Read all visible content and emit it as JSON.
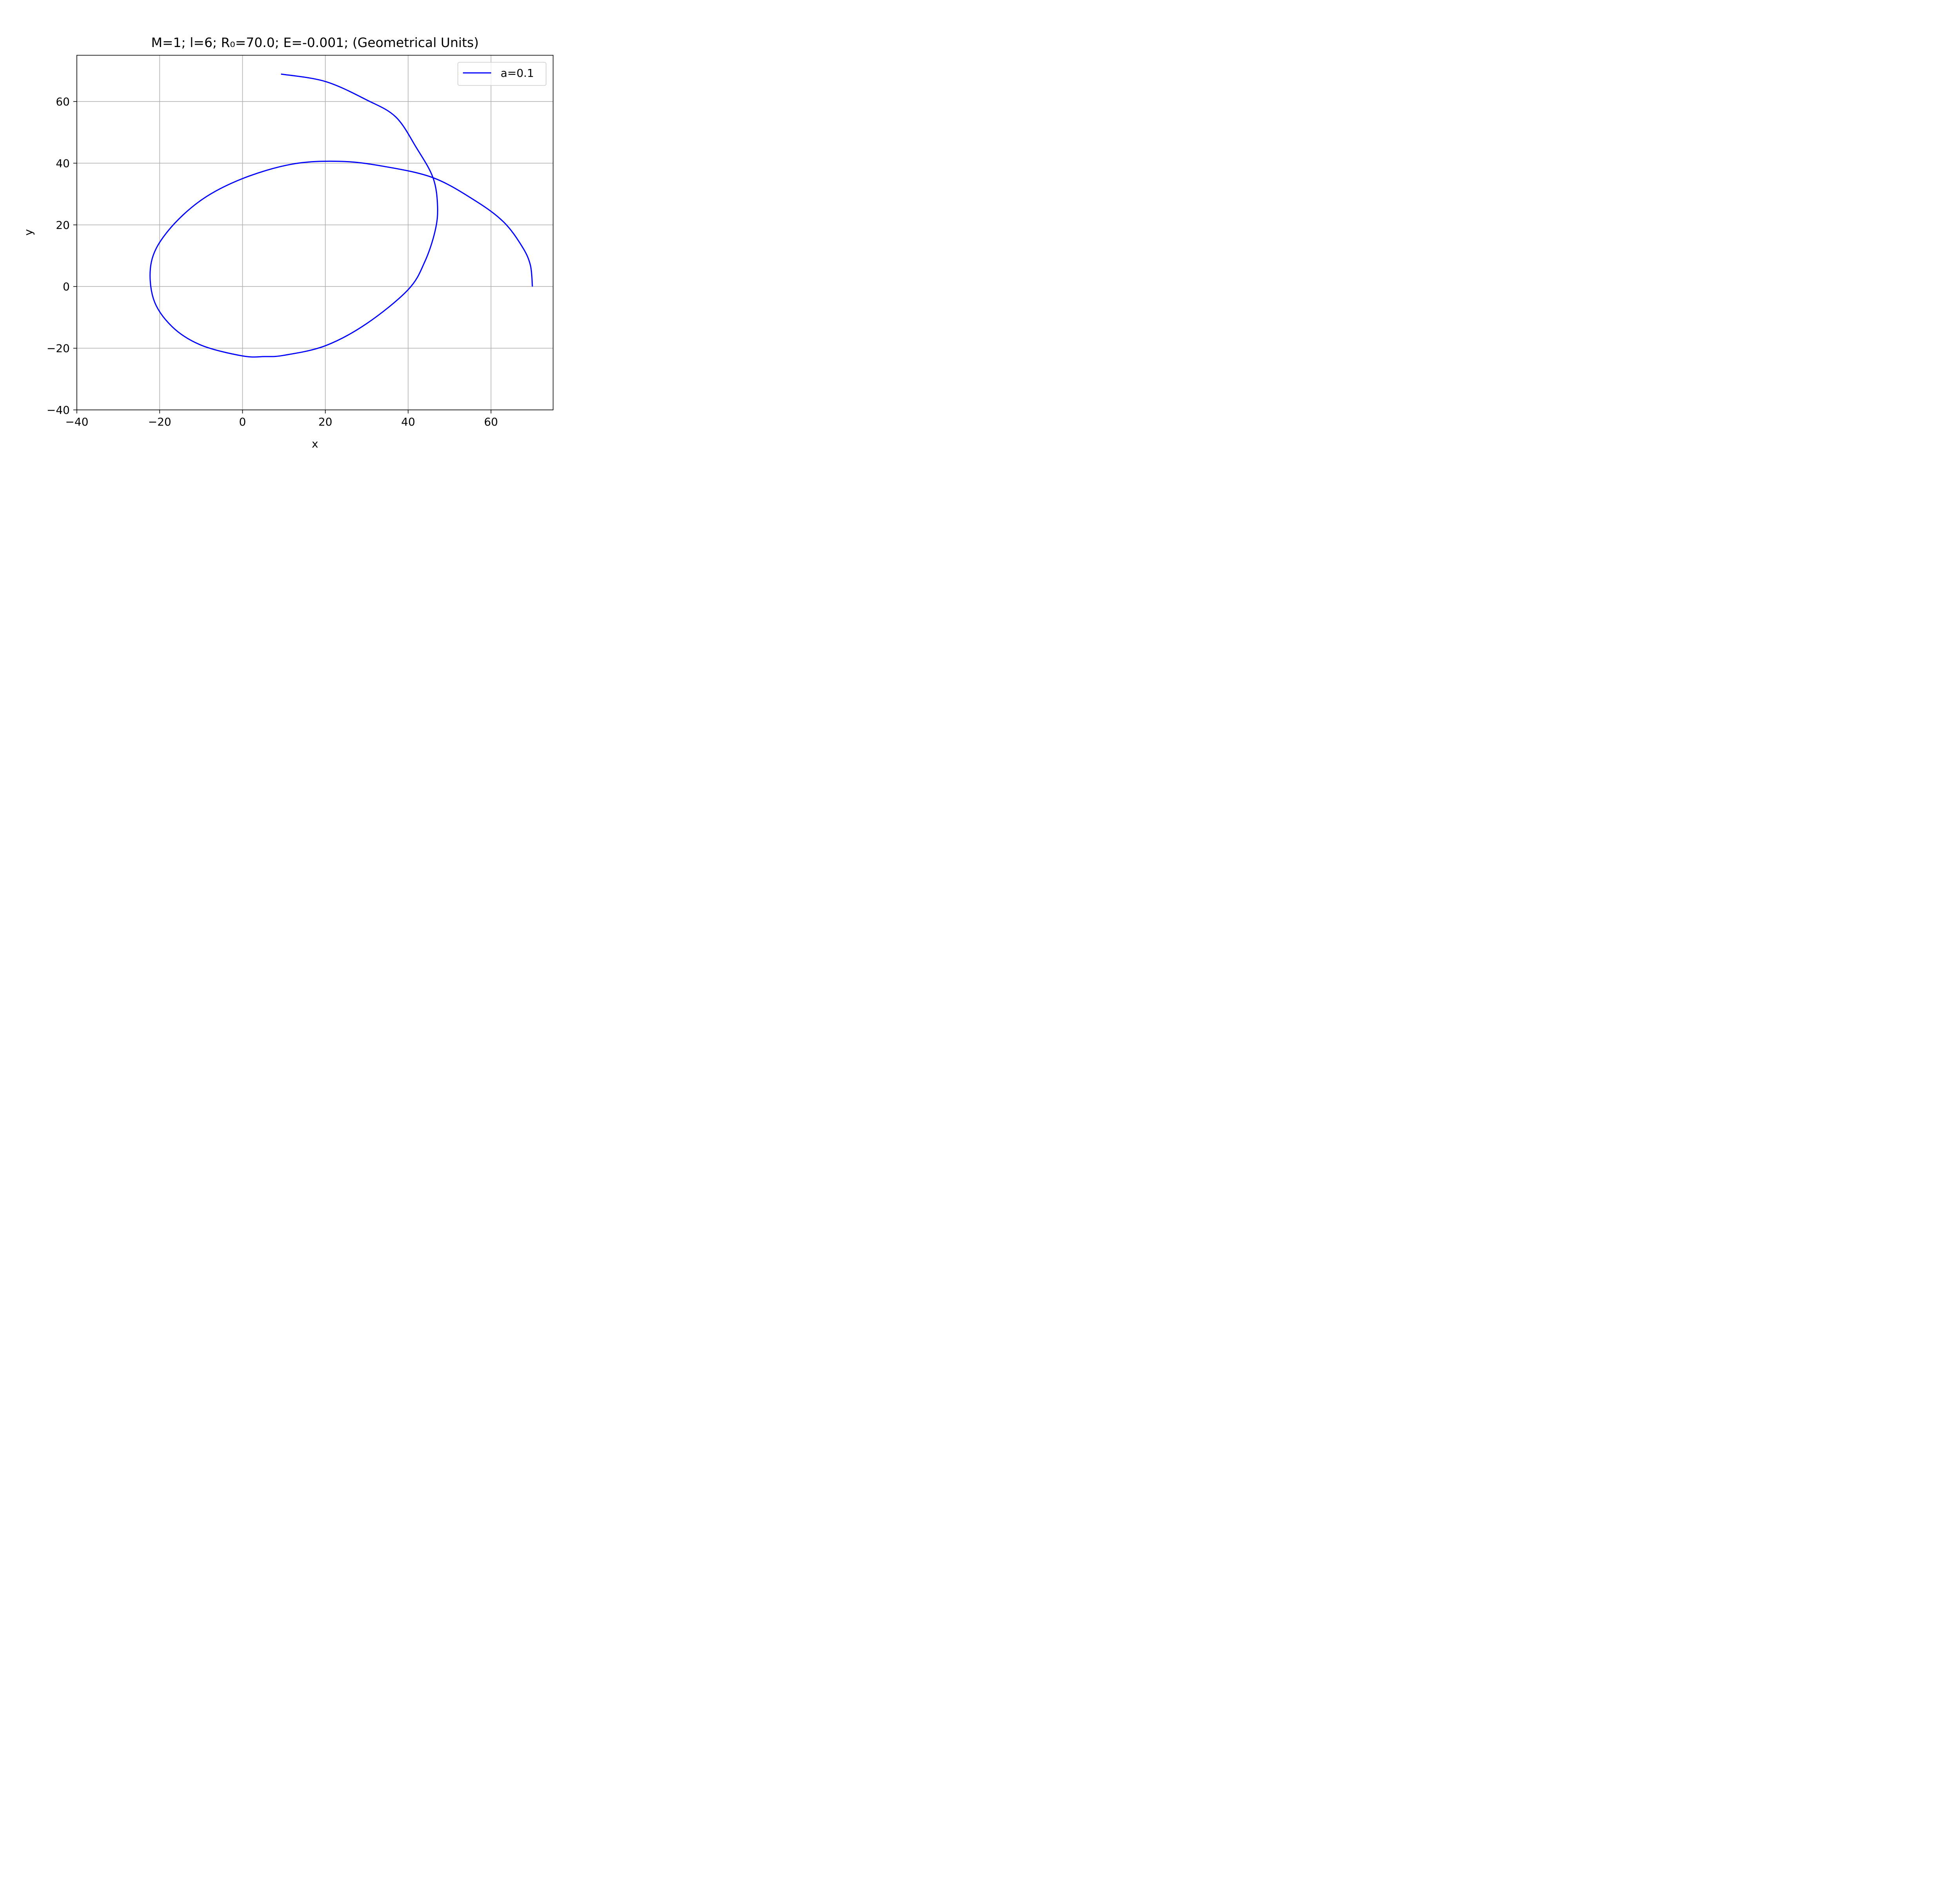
{
  "chart_data": {
    "type": "line",
    "title": "M=1; l=6; R₀=70.0; E=-0.001; (Geometrical Units)",
    "xlabel": "x",
    "ylabel": "y",
    "xlim": [
      -40,
      75
    ],
    "ylim": [
      -40,
      75
    ],
    "x_ticks": [
      -40,
      -20,
      0,
      20,
      40,
      60
    ],
    "y_ticks": [
      -40,
      -20,
      0,
      20,
      40,
      60
    ],
    "x_tick_labels": [
      "−40",
      "−20",
      "0",
      "20",
      "40",
      "60"
    ],
    "y_tick_labels": [
      "−40",
      "−20",
      "0",
      "20",
      "40",
      "60"
    ],
    "grid": true,
    "legend_position": "top-right",
    "colors": {
      "series": "#0000ff",
      "grid": "#b0b0b0",
      "axes": "#000000"
    },
    "series": [
      {
        "name": "a=0.1",
        "color": "#0000ff",
        "points": [
          [
            70,
            0
          ],
          [
            69.5,
            7
          ],
          [
            67.5,
            13
          ],
          [
            63,
            21
          ],
          [
            56,
            28
          ],
          [
            46,
            35.3
          ],
          [
            34,
            39
          ],
          [
            23.5,
            40.6
          ],
          [
            12,
            39.7
          ],
          [
            0,
            35
          ],
          [
            -10,
            28
          ],
          [
            -18,
            18
          ],
          [
            -22,
            8
          ],
          [
            -21.5,
            -4
          ],
          [
            -17,
            -13
          ],
          [
            -10,
            -19
          ],
          [
            0,
            -22.5
          ],
          [
            5.3,
            -22.7
          ],
          [
            10,
            -22.3
          ],
          [
            20,
            -19.2
          ],
          [
            30,
            -12
          ],
          [
            40,
            -1
          ],
          [
            44,
            8
          ],
          [
            46.5,
            18
          ],
          [
            47.1,
            26
          ],
          [
            46,
            35.3
          ],
          [
            42,
            45
          ],
          [
            37,
            55
          ],
          [
            30,
            60.5
          ],
          [
            20,
            66.5
          ],
          [
            9.3,
            68.9
          ]
        ]
      }
    ]
  }
}
